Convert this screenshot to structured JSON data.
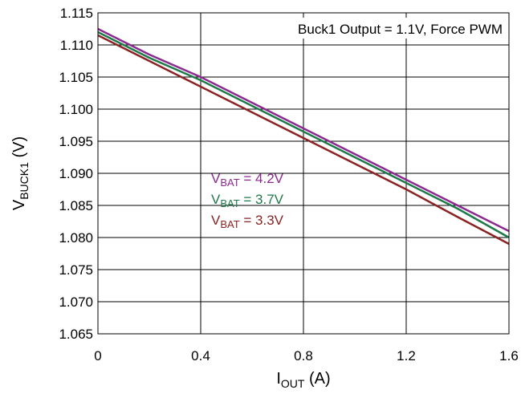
{
  "chart_data": {
    "type": "line",
    "xlabel": {
      "main": "I",
      "sub": "OUT",
      "rest": " (A)"
    },
    "ylabel": {
      "main": "V",
      "sub": "BUCK1",
      "rest": " (V)"
    },
    "xlim": [
      0,
      1.6
    ],
    "ylim": [
      1.065,
      1.115
    ],
    "xticks": [
      0,
      0.4,
      0.8,
      1.2,
      1.6
    ],
    "xtick_labels": [
      "0",
      "0.4",
      "0.8",
      "1.2",
      "1.6"
    ],
    "yticks": [
      1.065,
      1.07,
      1.075,
      1.08,
      1.085,
      1.09,
      1.095,
      1.1,
      1.105,
      1.11,
      1.115
    ],
    "ytick_labels": [
      "1.065",
      "1.070",
      "1.075",
      "1.080",
      "1.085",
      "1.090",
      "1.095",
      "1.100",
      "1.105",
      "1.110",
      "1.115"
    ],
    "grid": true,
    "annotation": "Buck1 Output = 1.1V, Force PWM",
    "series": [
      {
        "name": "V_BAT = 4.2V",
        "label_main": "V",
        "label_sub": "BAT",
        "label_rest": " = 4.2V",
        "color": "#8b2a8f",
        "x": [
          0,
          0.1,
          0.2,
          0.4,
          0.6,
          0.8,
          1.0,
          1.2,
          1.4,
          1.6
        ],
        "y": [
          1.1125,
          1.1105,
          1.1085,
          1.105,
          1.101,
          1.097,
          1.093,
          1.089,
          1.085,
          1.081
        ]
      },
      {
        "name": "V_BAT = 3.7V",
        "label_main": "V",
        "label_sub": "BAT",
        "label_rest": " = 3.7V",
        "color": "#1e7a4a",
        "x": [
          0,
          0.1,
          0.2,
          0.4,
          0.6,
          0.8,
          1.0,
          1.2,
          1.4,
          1.6
        ],
        "y": [
          1.112,
          1.11,
          1.108,
          1.1045,
          1.1005,
          1.0965,
          1.0925,
          1.0885,
          1.0845,
          1.08
        ]
      },
      {
        "name": "V_BAT = 3.3V",
        "label_main": "V",
        "label_sub": "BAT",
        "label_rest": " = 3.3V",
        "color": "#8b2323",
        "x": [
          0,
          0.1,
          0.2,
          0.4,
          0.6,
          0.8,
          1.0,
          1.2,
          1.4,
          1.6
        ],
        "y": [
          1.1115,
          1.1095,
          1.1075,
          1.1035,
          1.0995,
          1.0955,
          1.0915,
          1.0875,
          1.0832,
          1.079
        ]
      }
    ]
  }
}
